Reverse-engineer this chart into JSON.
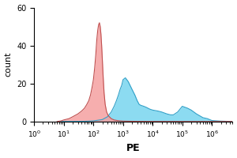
{
  "title": "",
  "xlabel": "PE",
  "ylabel": "count",
  "xlim_log": [
    6.0,
    5000000.0
  ],
  "ylim": [
    0,
    60
  ],
  "yticks": [
    0,
    20,
    40,
    60
  ],
  "red_fill": "#f5a0a0",
  "red_edge": "#c05050",
  "blue_fill": "#80d8f0",
  "blue_edge": "#30a0c8",
  "background": "#ffffff",
  "red_x": [
    6.0,
    8.0,
    10.0,
    15.0,
    20.0,
    30.0,
    40.0,
    50.0,
    60.0,
    70.0,
    80.0,
    90.0,
    100.0,
    110.0,
    120.0,
    130.0,
    140.0,
    150.0,
    160.0,
    170.0,
    180.0,
    190.0,
    200.0,
    210.0,
    220.0,
    230.0,
    250.0,
    280.0,
    320.0,
    400.0,
    500.0,
    700.0,
    1000.0,
    2000.0,
    5000.0,
    10000.0,
    50000.0,
    200000.0,
    1000000.0,
    5000000.0
  ],
  "red_y": [
    0.0,
    0.3,
    0.8,
    1.5,
    2.5,
    4.0,
    5.5,
    7.0,
    9.0,
    11.0,
    14.0,
    18.0,
    22.0,
    28.0,
    35.0,
    43.0,
    48.0,
    51.0,
    52.0,
    50.0,
    46.0,
    40.0,
    33.0,
    26.0,
    20.0,
    15.0,
    9.0,
    5.0,
    3.0,
    1.5,
    0.8,
    0.4,
    0.2,
    0.1,
    0.05,
    0.02,
    0.01,
    0.0,
    0.0,
    0.0
  ],
  "blue_x": [
    6.0,
    50.0,
    100.0,
    200.0,
    300.0,
    400.0,
    500.0,
    600.0,
    700.0,
    800.0,
    900.0,
    1000.0,
    1200.0,
    1500.0,
    2000.0,
    2500.0,
    3000.0,
    3500.0,
    4000.0,
    5000.0,
    6000.0,
    8000.0,
    10000.0,
    15000.0,
    20000.0,
    30000.0,
    40000.0,
    50000.0,
    70000.0,
    100000.0,
    150000.0,
    200000.0,
    300000.0,
    500000.0,
    700000.0,
    1000000.0,
    2000000.0,
    5000000.0
  ],
  "blue_y": [
    0.0,
    0.1,
    0.3,
    1.0,
    2.5,
    5.0,
    8.0,
    11.0,
    14.0,
    17.0,
    19.0,
    22.0,
    23.0,
    21.0,
    17.0,
    14.0,
    11.0,
    9.0,
    8.5,
    8.0,
    7.5,
    6.5,
    6.0,
    5.5,
    5.0,
    4.0,
    3.5,
    3.5,
    5.0,
    8.0,
    7.0,
    6.0,
    4.0,
    2.0,
    1.5,
    0.5,
    0.2,
    0.0
  ]
}
